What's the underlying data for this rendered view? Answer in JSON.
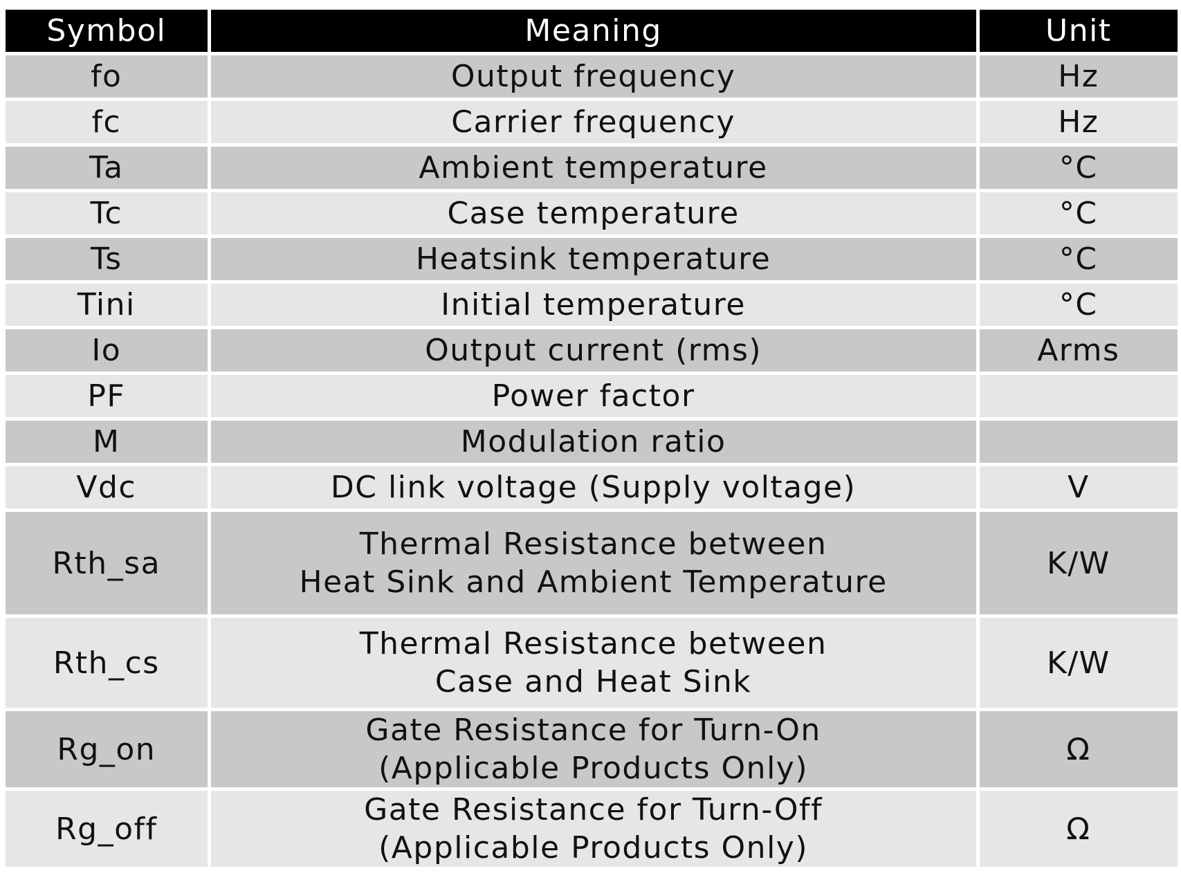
{
  "table": {
    "headers": [
      "Symbol",
      "Meaning",
      "Unit"
    ],
    "rows": [
      {
        "symbol": "fo",
        "meaning": [
          "Output frequency"
        ],
        "unit": "Hz"
      },
      {
        "symbol": "fc",
        "meaning": [
          "Carrier frequency"
        ],
        "unit": "Hz"
      },
      {
        "symbol": "Ta",
        "meaning": [
          "Ambient temperature"
        ],
        "unit": "°C"
      },
      {
        "symbol": "Tc",
        "meaning": [
          "Case temperature"
        ],
        "unit": "°C"
      },
      {
        "symbol": "Ts",
        "meaning": [
          "Heatsink temperature"
        ],
        "unit": "°C"
      },
      {
        "symbol": "Tini",
        "meaning": [
          "Initial temperature"
        ],
        "unit": "°C"
      },
      {
        "symbol": "Io",
        "meaning": [
          "Output current (rms)"
        ],
        "unit": "Arms"
      },
      {
        "symbol": "PF",
        "meaning": [
          "Power factor"
        ],
        "unit": ""
      },
      {
        "symbol": "M",
        "meaning": [
          "Modulation ratio"
        ],
        "unit": ""
      },
      {
        "symbol": "Vdc",
        "meaning": [
          "DC link voltage (Supply voltage)"
        ],
        "unit": "V"
      },
      {
        "symbol": "Rth_sa",
        "meaning": [
          "Thermal Resistance between",
          "Heat Sink and Ambient Temperature"
        ],
        "unit": "K/W"
      },
      {
        "symbol": "Rth_cs",
        "meaning": [
          "Thermal Resistance between",
          "Case and Heat Sink"
        ],
        "unit": "K/W"
      },
      {
        "symbol": "Rg_on",
        "meaning": [
          "Gate Resistance for Turn-On",
          "(Applicable Products Only)"
        ],
        "unit": "Ω"
      },
      {
        "symbol": "Rg_off",
        "meaning": [
          "Gate Resistance for Turn-Off",
          "(Applicable Products Only)"
        ],
        "unit": "Ω"
      }
    ]
  }
}
